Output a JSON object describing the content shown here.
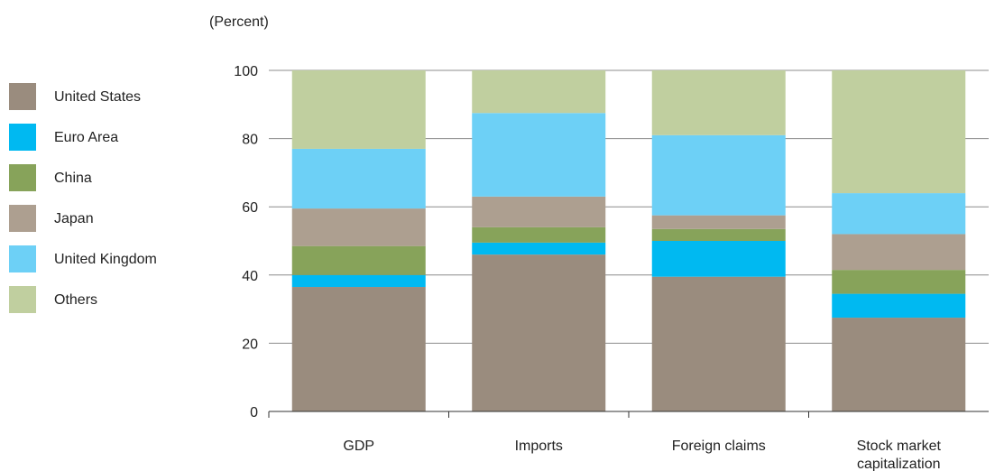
{
  "chart_data": {
    "type": "bar",
    "stacked": true,
    "unit_label": "(Percent)",
    "categories": [
      [
        "GDP"
      ],
      [
        "Imports"
      ],
      [
        "Foreign claims"
      ],
      [
        "Stock market",
        "capitalization"
      ]
    ],
    "series": [
      {
        "name": "United States",
        "color": "#9a8c7e",
        "values": [
          36.5,
          46.0,
          39.5,
          27.5
        ]
      },
      {
        "name": "Euro Area",
        "color": "#00b9f1",
        "values": [
          3.5,
          3.5,
          10.5,
          7.0
        ]
      },
      {
        "name": "China",
        "color": "#87a35a",
        "values": [
          8.5,
          4.5,
          3.5,
          7.0
        ]
      },
      {
        "name": "Japan",
        "color": "#ad9f90",
        "values": [
          11.0,
          9.0,
          4.0,
          10.5
        ]
      },
      {
        "name": "United Kingdom",
        "color": "#6dd0f6",
        "values": [
          17.5,
          24.5,
          23.5,
          12.0
        ]
      },
      {
        "name": "Others",
        "color": "#c0cf9f",
        "values": [
          23.0,
          12.5,
          19.0,
          36.0
        ]
      }
    ],
    "ylim": [
      0,
      100
    ],
    "yticks": [
      0,
      20,
      40,
      60,
      80,
      100
    ],
    "grid": true,
    "legend_position": "left"
  }
}
